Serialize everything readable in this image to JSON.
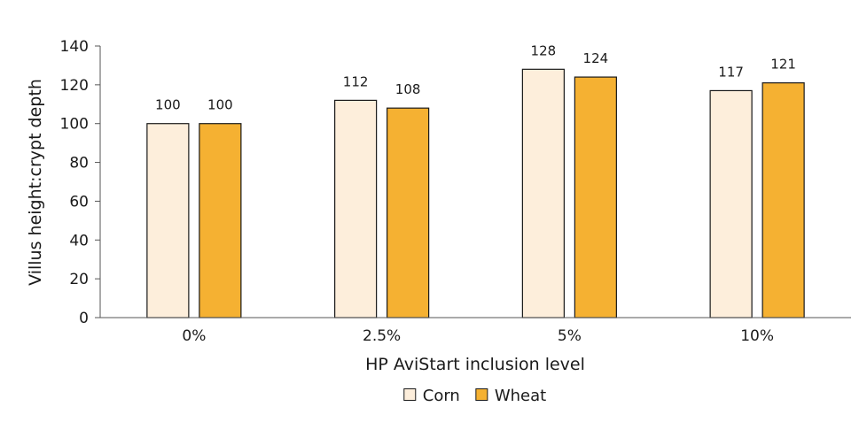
{
  "chart_data": {
    "type": "bar",
    "categories": [
      "0%",
      "2.5%",
      "5%",
      "10%"
    ],
    "series": [
      {
        "name": "Corn",
        "values": [
          100,
          112,
          128,
          117
        ],
        "color": "#fdeedb"
      },
      {
        "name": "Wheat",
        "values": [
          100,
          108,
          124,
          121
        ],
        "color": "#f5b132"
      }
    ],
    "title": "",
    "xlabel": "HP AviStart inclusion level",
    "ylabel": "Villus height:crypt depth",
    "ylim": [
      0,
      140
    ],
    "yticks": [
      0,
      20,
      40,
      60,
      80,
      100,
      120,
      140
    ],
    "grid": false,
    "legend_position": "bottom",
    "bar_border_color": "#1a1a1a"
  }
}
